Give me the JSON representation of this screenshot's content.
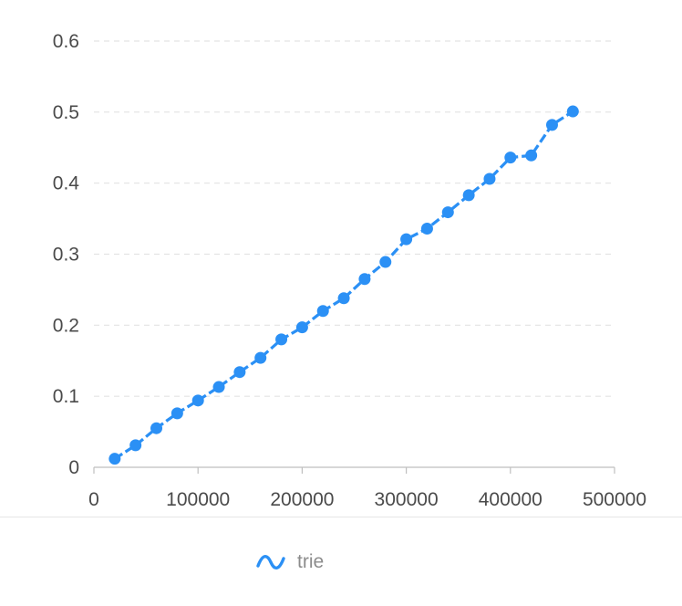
{
  "chart_data": {
    "type": "line",
    "x": [
      20000,
      40000,
      60000,
      80000,
      100000,
      120000,
      140000,
      160000,
      180000,
      200000,
      220000,
      240000,
      260000,
      280000,
      300000,
      320000,
      340000,
      360000,
      380000,
      400000,
      420000,
      440000,
      460000
    ],
    "series": [
      {
        "name": "trie",
        "color": "#2b90f5",
        "values": [
          0.012,
          0.031,
          0.055,
          0.076,
          0.094,
          0.113,
          0.134,
          0.154,
          0.18,
          0.197,
          0.22,
          0.238,
          0.265,
          0.289,
          0.321,
          0.336,
          0.359,
          0.383,
          0.406,
          0.436,
          0.439,
          0.482,
          0.501
        ]
      }
    ],
    "xlim": [
      0,
      500000
    ],
    "ylim": [
      0,
      0.6
    ],
    "x_ticks": [
      "0",
      "100000",
      "200000",
      "300000",
      "400000",
      "500000"
    ],
    "y_ticks": [
      "0",
      "0.1",
      "0.2",
      "0.3",
      "0.4",
      "0.5",
      "0.6"
    ],
    "grid": "horizontal dashed",
    "legend_position": "bottom-center"
  },
  "legend": {
    "label": "trie",
    "icon": "line-series-icon"
  }
}
